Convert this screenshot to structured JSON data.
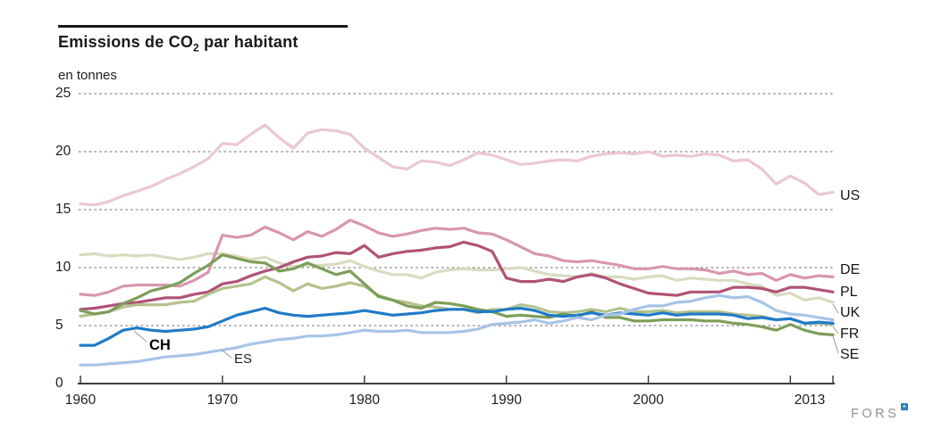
{
  "header": {
    "title_main": "Emissions de CO",
    "title_sub": "2",
    "title_tail": " par habitant",
    "unit": "en tonnes"
  },
  "branding": {
    "text": "FORS",
    "text_color": "#8e9194",
    "badge_color": "#2f7fb8"
  },
  "colors": {
    "grid": "#6b6b6b",
    "axis": "#3d3d3d",
    "connector": "#9a9a9a"
  },
  "chart_data": {
    "type": "line",
    "title": "Emissions de CO2 par habitant",
    "ylabel": "en tonnes",
    "xlabel": "",
    "grid": "horizontal dashed",
    "legend_position": "right-of-lines and inline (CH, ES)",
    "x_start": 1960,
    "x_end": 2013,
    "x_ticks": [
      1960,
      1970,
      1980,
      1990,
      2000,
      2010,
      2013
    ],
    "x_tick_labels": [
      "1960",
      "1970",
      "1980",
      "1990",
      "2000",
      "",
      "2013"
    ],
    "ylim": [
      0,
      25
    ],
    "y_ticks": [
      0,
      5,
      10,
      15,
      20,
      25
    ],
    "series": [
      {
        "id": "US",
        "label": "US",
        "color": "#ecc7d3",
        "label_side": "right",
        "values": [
          15.5,
          15.4,
          15.7,
          16.2,
          16.6,
          17.0,
          17.6,
          18.1,
          18.7,
          19.4,
          20.7,
          20.6,
          21.5,
          22.3,
          21.2,
          20.3,
          21.6,
          21.9,
          21.8,
          21.5,
          20.3,
          19.5,
          18.7,
          18.5,
          19.2,
          19.1,
          18.8,
          19.3,
          19.9,
          19.7,
          19.3,
          18.9,
          19.0,
          19.2,
          19.3,
          19.2,
          19.6,
          19.8,
          19.9,
          19.8,
          20.0,
          19.6,
          19.7,
          19.6,
          19.8,
          19.7,
          19.2,
          19.3,
          18.5,
          17.2,
          17.9,
          17.3,
          16.3,
          16.5
        ]
      },
      {
        "id": "UK",
        "label": "UK",
        "color": "#d9dbc0",
        "label_side": "right",
        "values": [
          11.1,
          11.2,
          11.0,
          11.1,
          11.0,
          11.1,
          10.9,
          10.7,
          10.9,
          11.2,
          11.2,
          11.0,
          10.7,
          10.9,
          10.4,
          10.1,
          10.2,
          10.2,
          10.3,
          10.6,
          10.1,
          9.7,
          9.4,
          9.4,
          9.1,
          9.6,
          9.8,
          9.9,
          9.8,
          9.8,
          9.9,
          10.0,
          9.7,
          9.4,
          9.3,
          9.2,
          9.5,
          9.2,
          9.2,
          9.0,
          9.2,
          9.3,
          8.9,
          9.1,
          9.0,
          8.9,
          8.9,
          8.6,
          8.4,
          7.6,
          7.8,
          7.2,
          7.4,
          7.0
        ]
      },
      {
        "id": "DE",
        "label": "DE",
        "color": "#d996ae",
        "label_side": "right",
        "values": [
          7.7,
          7.6,
          7.9,
          8.4,
          8.5,
          8.5,
          8.5,
          8.4,
          8.9,
          9.6,
          12.8,
          12.6,
          12.8,
          13.5,
          13.0,
          12.4,
          13.1,
          12.7,
          13.3,
          14.1,
          13.6,
          13.0,
          12.7,
          12.9,
          13.2,
          13.4,
          13.3,
          13.4,
          13.0,
          12.9,
          12.4,
          11.8,
          11.2,
          11.0,
          10.6,
          10.5,
          10.6,
          10.4,
          10.2,
          9.9,
          9.9,
          10.1,
          9.9,
          9.9,
          9.8,
          9.5,
          9.7,
          9.4,
          9.5,
          8.9,
          9.4,
          9.1,
          9.3,
          9.2
        ]
      },
      {
        "id": "PL",
        "label": "PL",
        "color": "#b05278",
        "label_side": "right",
        "values": [
          6.4,
          6.5,
          6.7,
          6.9,
          7.0,
          7.2,
          7.4,
          7.4,
          7.7,
          7.9,
          8.6,
          8.8,
          9.3,
          9.7,
          10.0,
          10.5,
          10.9,
          11.0,
          11.3,
          11.2,
          11.9,
          10.9,
          11.2,
          11.4,
          11.5,
          11.7,
          11.8,
          12.2,
          11.9,
          11.4,
          9.1,
          8.8,
          8.8,
          9.0,
          8.8,
          9.2,
          9.4,
          9.1,
          8.6,
          8.2,
          7.8,
          7.7,
          7.6,
          7.9,
          7.9,
          7.9,
          8.3,
          8.3,
          8.2,
          7.9,
          8.3,
          8.3,
          8.1,
          7.9
        ]
      },
      {
        "id": "FR",
        "label": "FR",
        "color": "#b5c28d",
        "label_side": "right",
        "values": [
          5.8,
          6.0,
          6.2,
          6.6,
          6.8,
          6.8,
          6.8,
          7.0,
          7.1,
          7.7,
          8.2,
          8.4,
          8.6,
          9.2,
          8.7,
          8.0,
          8.6,
          8.2,
          8.4,
          8.7,
          8.4,
          7.6,
          7.2,
          7.0,
          6.7,
          6.6,
          6.4,
          6.4,
          6.1,
          6.4,
          6.4,
          6.8,
          6.6,
          6.2,
          6.1,
          6.2,
          6.4,
          6.2,
          6.5,
          6.2,
          6.2,
          6.3,
          6.1,
          6.2,
          6.2,
          6.2,
          6.0,
          5.9,
          5.8,
          5.5,
          5.6,
          5.2,
          5.2,
          5.1
        ]
      },
      {
        "id": "SE",
        "label": "SE",
        "color": "#7d9e58",
        "label_side": "right",
        "values": [
          6.3,
          6.0,
          6.2,
          6.9,
          7.4,
          8.0,
          8.3,
          8.7,
          9.5,
          10.2,
          11.1,
          10.8,
          10.5,
          10.4,
          9.7,
          9.9,
          10.4,
          9.9,
          9.4,
          9.7,
          8.6,
          7.5,
          7.2,
          6.7,
          6.5,
          7.0,
          6.9,
          6.7,
          6.4,
          6.2,
          5.8,
          5.9,
          5.8,
          5.7,
          6.0,
          5.8,
          6.2,
          5.7,
          5.7,
          5.4,
          5.4,
          5.5,
          5.5,
          5.5,
          5.4,
          5.4,
          5.2,
          5.1,
          4.9,
          4.6,
          5.1,
          4.6,
          4.3,
          4.2
        ]
      },
      {
        "id": "CH",
        "label": "CH",
        "color": "#1f7bc8",
        "label_side": "inline",
        "values": [
          3.3,
          3.3,
          3.9,
          4.6,
          4.8,
          4.6,
          4.5,
          4.6,
          4.7,
          4.9,
          5.4,
          5.9,
          6.2,
          6.5,
          6.1,
          5.9,
          5.8,
          5.9,
          6.0,
          6.1,
          6.3,
          6.1,
          5.9,
          6.0,
          6.1,
          6.3,
          6.4,
          6.4,
          6.2,
          6.2,
          6.4,
          6.5,
          6.3,
          5.9,
          5.8,
          5.9,
          6.1,
          5.9,
          6.1,
          6.0,
          5.9,
          6.1,
          5.9,
          6.0,
          6.0,
          6.0,
          5.9,
          5.6,
          5.7,
          5.5,
          5.6,
          5.2,
          5.3,
          5.2
        ]
      },
      {
        "id": "ES",
        "label": "ES",
        "color": "#a7c4e6",
        "label_side": "inline",
        "values": [
          1.6,
          1.6,
          1.7,
          1.8,
          1.9,
          2.1,
          2.3,
          2.4,
          2.5,
          2.7,
          2.9,
          3.1,
          3.4,
          3.6,
          3.8,
          3.9,
          4.1,
          4.1,
          4.2,
          4.4,
          4.6,
          4.5,
          4.5,
          4.6,
          4.4,
          4.4,
          4.4,
          4.5,
          4.7,
          5.1,
          5.2,
          5.3,
          5.5,
          5.2,
          5.4,
          5.7,
          5.5,
          5.9,
          6.0,
          6.4,
          6.7,
          6.7,
          7.0,
          7.1,
          7.4,
          7.6,
          7.4,
          7.5,
          7.0,
          6.3,
          6.0,
          5.9,
          5.7,
          5.5
        ]
      }
    ]
  }
}
